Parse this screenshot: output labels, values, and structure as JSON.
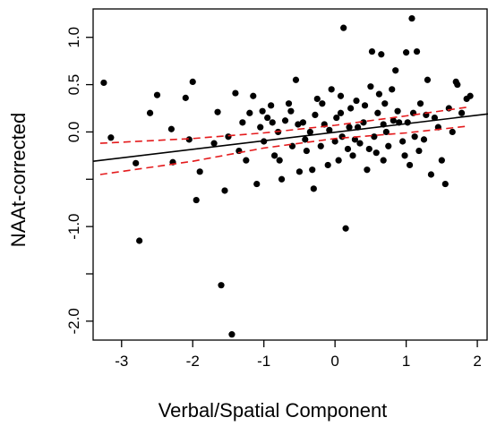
{
  "chart_data": {
    "type": "scatter",
    "xlabel": "Verbal/Spatial Component",
    "ylabel": "NAAt-corrected",
    "xlim": [
      -3.4,
      2.15
    ],
    "ylim": [
      -2.2,
      1.3
    ],
    "x_ticks": [
      -3,
      -2,
      -1,
      0,
      1,
      2
    ],
    "x_tick_labels": [
      "-3",
      "-2",
      "-1",
      "0",
      "1",
      "2"
    ],
    "y_ticks": [
      -2.0,
      -1.5,
      -1.0,
      -0.5,
      0.0,
      0.5,
      1.0
    ],
    "y_tick_labels": [
      "-2.0",
      "",
      "-1.0",
      "",
      "0.0",
      "0.5",
      "1.0"
    ],
    "grid": false,
    "legend": "none",
    "colors": {
      "points": "#000000",
      "fit": "#000000",
      "ci": "#e41a1c"
    },
    "fit_line": {
      "x": [
        -3.4,
        2.15
      ],
      "y": [
        -0.31,
        0.19
      ]
    },
    "ci_upper": {
      "x": [
        -3.3,
        -2.0,
        -1.0,
        0.0,
        1.0,
        1.85
      ],
      "y": [
        -0.12,
        -0.07,
        -0.01,
        0.07,
        0.17,
        0.26
      ]
    },
    "ci_lower": {
      "x": [
        -3.3,
        -2.0,
        -1.0,
        0.0,
        1.0,
        1.85
      ],
      "y": [
        -0.45,
        -0.31,
        -0.17,
        -0.07,
        -0.01,
        0.06
      ]
    },
    "series": [
      {
        "points": [
          [
            -3.25,
            0.52
          ],
          [
            -3.15,
            -0.06
          ],
          [
            -2.8,
            -0.33
          ],
          [
            -2.75,
            -1.15
          ],
          [
            -2.6,
            0.2
          ],
          [
            -2.5,
            0.39
          ],
          [
            -2.3,
            0.03
          ],
          [
            -2.28,
            -0.32
          ],
          [
            -2.1,
            0.36
          ],
          [
            -2.05,
            -0.08
          ],
          [
            -2.0,
            0.53
          ],
          [
            -1.95,
            -0.72
          ],
          [
            -1.9,
            -0.42
          ],
          [
            -1.7,
            -0.12
          ],
          [
            -1.65,
            0.21
          ],
          [
            -1.6,
            -1.62
          ],
          [
            -1.55,
            -0.62
          ],
          [
            -1.5,
            -0.05
          ],
          [
            -1.45,
            -2.14
          ],
          [
            -1.4,
            0.41
          ],
          [
            -1.35,
            -0.2
          ],
          [
            -1.3,
            0.1
          ],
          [
            -1.25,
            -0.3
          ],
          [
            -1.2,
            0.2
          ],
          [
            -1.15,
            0.38
          ],
          [
            -1.1,
            -0.55
          ],
          [
            -1.05,
            0.05
          ],
          [
            -1.0,
            -0.1
          ],
          [
            -0.95,
            0.15
          ],
          [
            -0.9,
            0.28
          ],
          [
            -0.85,
            -0.25
          ],
          [
            -0.8,
            0.0
          ],
          [
            -0.75,
            -0.5
          ],
          [
            -0.7,
            0.12
          ],
          [
            -0.65,
            0.3
          ],
          [
            -0.6,
            -0.15
          ],
          [
            -0.55,
            0.55
          ],
          [
            -0.5,
            -0.42
          ],
          [
            -0.45,
            0.1
          ],
          [
            -0.4,
            -0.2
          ],
          [
            -0.35,
            0.0
          ],
          [
            -0.3,
            -0.6
          ],
          [
            -0.25,
            0.35
          ],
          [
            -0.2,
            -0.15
          ],
          [
            -0.15,
            0.08
          ],
          [
            -0.1,
            -0.35
          ],
          [
            -0.05,
            0.45
          ],
          [
            0.0,
            -0.1
          ],
          [
            0.02,
            0.15
          ],
          [
            0.05,
            -0.3
          ],
          [
            0.08,
            0.2
          ],
          [
            0.1,
            -0.05
          ],
          [
            0.12,
            1.1
          ],
          [
            0.15,
            -1.02
          ],
          [
            0.2,
            0.05
          ],
          [
            0.25,
            -0.25
          ],
          [
            0.3,
            0.33
          ],
          [
            0.35,
            -0.12
          ],
          [
            0.4,
            0.1
          ],
          [
            0.45,
            -0.4
          ],
          [
            0.5,
            0.48
          ],
          [
            0.52,
            0.85
          ],
          [
            0.55,
            -0.05
          ],
          [
            0.6,
            0.2
          ],
          [
            0.65,
            0.82
          ],
          [
            0.68,
            -0.3
          ],
          [
            0.7,
            0.3
          ],
          [
            0.75,
            -0.15
          ],
          [
            0.8,
            0.45
          ],
          [
            0.85,
            0.65
          ],
          [
            0.9,
            0.1
          ],
          [
            0.95,
            -0.1
          ],
          [
            1.0,
            0.84
          ],
          [
            1.05,
            -0.35
          ],
          [
            1.08,
            1.2
          ],
          [
            1.1,
            0.2
          ],
          [
            1.15,
            0.85
          ],
          [
            1.2,
            0.3
          ],
          [
            1.25,
            -0.08
          ],
          [
            1.3,
            0.55
          ],
          [
            1.35,
            -0.45
          ],
          [
            1.4,
            0.15
          ],
          [
            1.45,
            0.05
          ],
          [
            1.5,
            -0.3
          ],
          [
            1.55,
            -0.55
          ],
          [
            1.6,
            0.25
          ],
          [
            1.65,
            0.0
          ],
          [
            1.7,
            0.53
          ],
          [
            1.72,
            0.5
          ],
          [
            1.78,
            0.2
          ],
          [
            1.85,
            0.35
          ],
          [
            1.9,
            0.38
          ],
          [
            -0.88,
            0.1
          ],
          [
            -0.62,
            0.22
          ],
          [
            -0.42,
            -0.08
          ],
          [
            -0.18,
            0.3
          ],
          [
            -0.08,
            0.02
          ],
          [
            0.18,
            -0.18
          ],
          [
            0.32,
            0.05
          ],
          [
            0.42,
            0.28
          ],
          [
            0.58,
            -0.22
          ],
          [
            0.72,
            0.0
          ],
          [
            0.88,
            0.22
          ],
          [
            1.02,
            0.1
          ],
          [
            1.18,
            -0.2
          ],
          [
            -1.02,
            0.22
          ],
          [
            -0.78,
            -0.3
          ],
          [
            -0.28,
            0.18
          ],
          [
            0.28,
            -0.08
          ],
          [
            0.62,
            0.4
          ],
          [
            0.98,
            -0.25
          ],
          [
            1.28,
            0.18
          ],
          [
            -0.52,
            0.08
          ],
          [
            0.08,
            0.38
          ],
          [
            0.48,
            -0.18
          ],
          [
            0.82,
            0.12
          ],
          [
            -0.32,
            -0.4
          ],
          [
            0.22,
            0.25
          ],
          [
            0.68,
            0.08
          ],
          [
            1.12,
            -0.05
          ]
        ]
      }
    ]
  }
}
